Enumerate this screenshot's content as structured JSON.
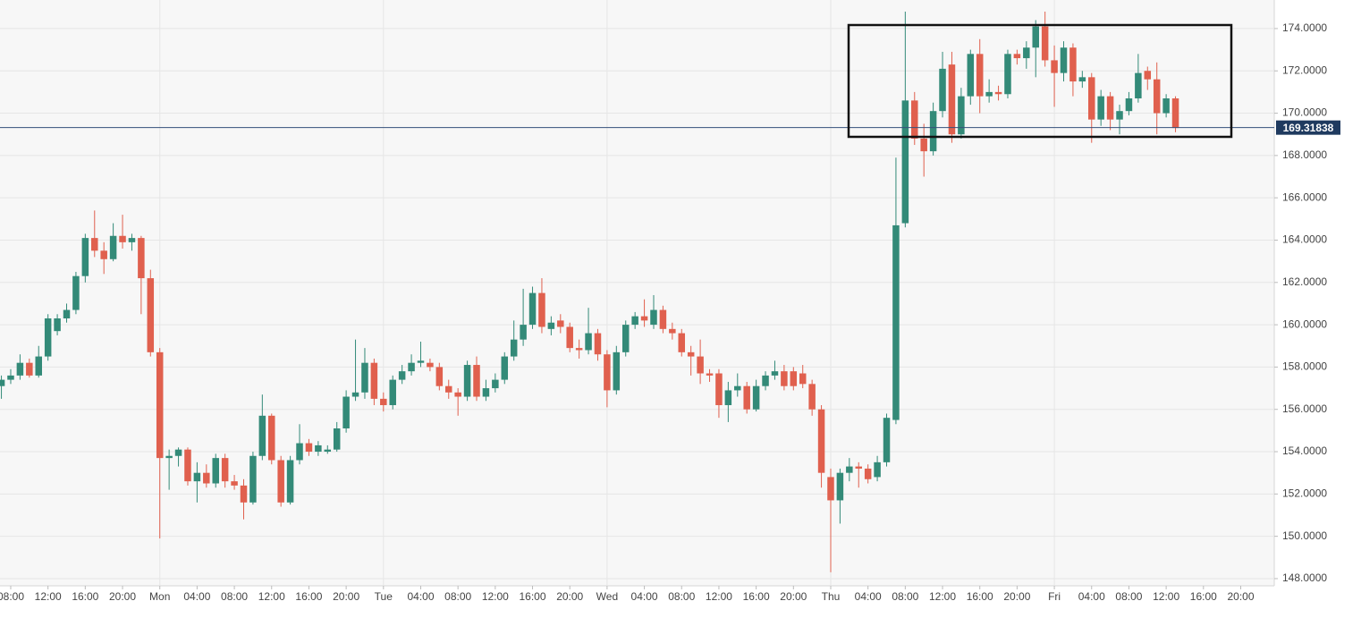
{
  "chart_data": {
    "type": "candlestick",
    "up_color": "#338a78",
    "down_color": "#e0604e",
    "grid": true,
    "xlim": [
      -1.15,
      135.6
    ],
    "ylim": [
      147.66,
      175.35
    ],
    "yticks": [
      {
        "value": 148,
        "label": "148.0000"
      },
      {
        "value": 150,
        "label": "150.0000"
      },
      {
        "value": 152,
        "label": "152.0000"
      },
      {
        "value": 154,
        "label": "154.0000"
      },
      {
        "value": 156,
        "label": "156.0000"
      },
      {
        "value": 158,
        "label": "158.0000"
      },
      {
        "value": 160,
        "label": "160.0000"
      },
      {
        "value": 162,
        "label": "162.0000"
      },
      {
        "value": 164,
        "label": "164.0000"
      },
      {
        "value": 166,
        "label": "166.0000"
      },
      {
        "value": 168,
        "label": "168.0000"
      },
      {
        "value": 170,
        "label": "170.0000"
      },
      {
        "value": 172,
        "label": "172.0000"
      },
      {
        "value": 174,
        "label": "174.0000"
      }
    ],
    "xticks": [
      {
        "value": 0,
        "label": "08:00"
      },
      {
        "value": 4,
        "label": "12:00"
      },
      {
        "value": 8,
        "label": "16:00"
      },
      {
        "value": 12,
        "label": "20:00"
      },
      {
        "value": 16,
        "label": "Mon"
      },
      {
        "value": 20,
        "label": "04:00"
      },
      {
        "value": 24,
        "label": "08:00"
      },
      {
        "value": 28,
        "label": "12:00"
      },
      {
        "value": 32,
        "label": "16:00"
      },
      {
        "value": 36,
        "label": "20:00"
      },
      {
        "value": 40,
        "label": "Tue"
      },
      {
        "value": 44,
        "label": "04:00"
      },
      {
        "value": 48,
        "label": "08:00"
      },
      {
        "value": 52,
        "label": "12:00"
      },
      {
        "value": 56,
        "label": "16:00"
      },
      {
        "value": 60,
        "label": "20:00"
      },
      {
        "value": 64,
        "label": "Wed"
      },
      {
        "value": 68,
        "label": "04:00"
      },
      {
        "value": 72,
        "label": "08:00"
      },
      {
        "value": 76,
        "label": "12:00"
      },
      {
        "value": 80,
        "label": "16:00"
      },
      {
        "value": 84,
        "label": "20:00"
      },
      {
        "value": 88,
        "label": "Thu"
      },
      {
        "value": 92,
        "label": "04:00"
      },
      {
        "value": 96,
        "label": "08:00"
      },
      {
        "value": 100,
        "label": "12:00"
      },
      {
        "value": 104,
        "label": "16:00"
      },
      {
        "value": 108,
        "label": "20:00"
      },
      {
        "value": 112,
        "label": "Fri"
      },
      {
        "value": 116,
        "label": "04:00"
      },
      {
        "value": 120,
        "label": "08:00"
      },
      {
        "value": 124,
        "label": "12:00"
      },
      {
        "value": 128,
        "label": "16:00"
      },
      {
        "value": 132,
        "label": "20:00"
      }
    ],
    "last_price": 169.31838,
    "x": [
      -1,
      0,
      1,
      2,
      3,
      4,
      5,
      6,
      7,
      8,
      9,
      10,
      11,
      12,
      13,
      14,
      15,
      16,
      17,
      18,
      19,
      20,
      21,
      22,
      23,
      24,
      25,
      26,
      27,
      28,
      29,
      30,
      31,
      32,
      33,
      34,
      35,
      36,
      37,
      38,
      39,
      40,
      41,
      42,
      43,
      44,
      45,
      46,
      47,
      48,
      49,
      50,
      51,
      52,
      53,
      54,
      55,
      56,
      57,
      58,
      59,
      60,
      61,
      62,
      63,
      64,
      65,
      66,
      67,
      68,
      69,
      70,
      71,
      72,
      73,
      74,
      75,
      76,
      77,
      78,
      79,
      80,
      81,
      82,
      83,
      84,
      85,
      86,
      87,
      88,
      89,
      90,
      91,
      92,
      93,
      94,
      95,
      96,
      97,
      98,
      99,
      100,
      101,
      102,
      103,
      104,
      105,
      106,
      107,
      108,
      109,
      110,
      111,
      112,
      113,
      114,
      115,
      116,
      117,
      118,
      119,
      120,
      121,
      122,
      123,
      124,
      125
    ],
    "open": [
      157.1,
      157.4,
      157.6,
      158.2,
      157.6,
      158.5,
      159.7,
      160.3,
      160.7,
      162.3,
      164.1,
      163.5,
      163.1,
      164.2,
      163.9,
      164.1,
      162.2,
      158.7,
      153.7,
      153.8,
      154.1,
      152.6,
      153.0,
      152.5,
      153.7,
      152.6,
      152.4,
      151.6,
      153.8,
      155.7,
      153.6,
      151.6,
      153.6,
      154.4,
      154.0,
      154.0,
      154.1,
      155.1,
      156.6,
      156.8,
      158.2,
      156.5,
      156.2,
      157.4,
      157.8,
      158.2,
      158.2,
      158.0,
      157.1,
      156.8,
      156.6,
      158.1,
      156.6,
      157.0,
      157.4,
      158.5,
      159.3,
      160.0,
      161.5,
      159.8,
      160.2,
      159.9,
      158.9,
      158.8,
      159.6,
      158.6,
      156.9,
      158.7,
      160.0,
      160.4,
      160.0,
      160.7,
      159.8,
      159.6,
      158.7,
      158.5,
      157.7,
      157.7,
      156.2,
      156.9,
      157.1,
      156.0,
      157.1,
      157.6,
      157.8,
      157.8,
      157.7,
      157.2,
      156.0,
      152.8,
      151.7,
      153.0,
      153.3,
      153.2,
      152.8,
      153.5,
      155.5,
      164.8,
      170.6,
      168.8,
      168.2,
      170.1,
      172.3,
      169.0,
      170.8,
      172.8,
      170.8,
      171.0,
      170.9,
      172.8,
      172.6,
      173.1,
      174.1,
      172.5,
      171.9,
      173.1,
      171.5,
      171.7,
      169.7,
      170.8,
      169.7,
      170.1,
      170.7,
      172.0,
      171.6,
      170.0,
      170.7
    ],
    "high": [
      157.6,
      157.9,
      158.6,
      158.4,
      159.0,
      160.5,
      160.5,
      161.0,
      162.5,
      164.3,
      165.4,
      163.9,
      164.8,
      165.2,
      164.3,
      164.2,
      162.6,
      158.9,
      154.1,
      154.2,
      154.2,
      153.5,
      153.4,
      153.9,
      153.9,
      152.9,
      152.7,
      154.0,
      156.7,
      155.8,
      153.8,
      153.8,
      155.3,
      154.6,
      154.5,
      154.3,
      155.4,
      156.9,
      159.3,
      158.9,
      158.4,
      156.8,
      157.6,
      158.1,
      158.6,
      159.2,
      158.4,
      158.2,
      157.4,
      157.0,
      158.3,
      158.5,
      157.4,
      157.7,
      158.7,
      160.2,
      161.7,
      161.8,
      162.2,
      160.4,
      160.5,
      160.1,
      159.3,
      160.8,
      159.8,
      158.8,
      159.0,
      160.2,
      160.6,
      161.2,
      161.4,
      160.9,
      160.1,
      159.8,
      159.0,
      159.3,
      157.9,
      157.9,
      157.3,
      157.7,
      157.3,
      157.4,
      157.8,
      158.3,
      158.1,
      158.0,
      158.1,
      157.4,
      156.2,
      153.2,
      153.2,
      153.7,
      153.5,
      153.4,
      153.8,
      155.8,
      167.9,
      174.8,
      171.0,
      169.5,
      170.5,
      172.9,
      172.9,
      171.2,
      173.0,
      173.5,
      171.6,
      171.3,
      173.0,
      173.0,
      173.4,
      174.4,
      174.8,
      173.2,
      173.4,
      173.3,
      172.0,
      171.9,
      171.1,
      171.0,
      170.4,
      171.0,
      172.8,
      172.2,
      172.4,
      170.9,
      170.8
    ],
    "low": [
      156.5,
      157.2,
      157.4,
      157.5,
      157.5,
      158.3,
      159.5,
      160.1,
      160.5,
      162.0,
      163.2,
      162.4,
      163.0,
      163.6,
      163.5,
      160.5,
      158.5,
      149.9,
      152.2,
      153.3,
      152.4,
      151.6,
      152.3,
      152.3,
      152.3,
      152.2,
      150.8,
      151.5,
      153.6,
      153.4,
      151.4,
      151.5,
      153.4,
      153.8,
      153.8,
      153.9,
      154.0,
      154.9,
      156.4,
      156.5,
      156.2,
      155.9,
      156.0,
      157.2,
      157.6,
      158.0,
      157.8,
      156.9,
      156.5,
      155.7,
      156.4,
      156.4,
      156.4,
      156.8,
      157.2,
      158.3,
      159.0,
      159.8,
      159.6,
      159.5,
      159.6,
      158.7,
      158.4,
      158.6,
      158.3,
      156.1,
      156.7,
      158.5,
      159.8,
      159.9,
      159.8,
      159.6,
      159.3,
      158.5,
      157.6,
      157.2,
      157.3,
      155.6,
      155.4,
      156.6,
      155.8,
      155.9,
      156.9,
      157.4,
      156.9,
      156.9,
      157.0,
      155.7,
      152.3,
      148.3,
      150.6,
      152.6,
      152.3,
      152.5,
      152.6,
      153.3,
      155.3,
      164.6,
      168.5,
      167.0,
      168.0,
      169.8,
      168.6,
      168.8,
      170.4,
      170.0,
      170.5,
      170.6,
      170.7,
      172.3,
      172.1,
      171.7,
      172.2,
      170.3,
      171.5,
      170.8,
      171.2,
      168.6,
      169.4,
      169.2,
      169.0,
      169.9,
      170.5,
      171.1,
      169.0,
      169.8,
      169.1
    ],
    "close": [
      157.4,
      157.6,
      158.2,
      157.6,
      158.5,
      160.3,
      160.3,
      160.7,
      162.3,
      164.1,
      163.5,
      163.1,
      164.2,
      163.9,
      164.1,
      162.2,
      158.7,
      153.7,
      153.8,
      154.1,
      152.6,
      153.0,
      152.5,
      153.7,
      152.6,
      152.4,
      151.6,
      153.8,
      155.7,
      153.6,
      151.6,
      153.6,
      154.4,
      154.0,
      154.3,
      154.1,
      155.1,
      156.6,
      156.8,
      158.2,
      156.5,
      156.2,
      157.4,
      157.8,
      158.2,
      158.3,
      158.0,
      157.1,
      156.8,
      156.6,
      158.1,
      156.6,
      157.0,
      157.4,
      158.5,
      159.3,
      160.0,
      161.5,
      159.9,
      160.1,
      159.9,
      158.9,
      158.8,
      159.6,
      158.6,
      156.9,
      158.7,
      160.0,
      160.4,
      160.2,
      160.7,
      159.8,
      159.6,
      158.7,
      158.5,
      157.7,
      157.6,
      156.2,
      156.9,
      157.1,
      156.0,
      157.1,
      157.6,
      157.8,
      157.1,
      157.1,
      157.2,
      156.0,
      153.0,
      151.7,
      153.0,
      153.3,
      153.2,
      152.7,
      153.5,
      155.6,
      164.7,
      170.6,
      168.8,
      168.2,
      170.1,
      172.1,
      169.0,
      170.8,
      172.8,
      170.8,
      171.0,
      170.9,
      172.8,
      172.6,
      173.1,
      174.1,
      172.5,
      171.9,
      173.1,
      171.5,
      171.7,
      169.7,
      170.8,
      169.7,
      170.1,
      170.7,
      171.9,
      171.6,
      170.0,
      170.7,
      169.3
    ]
  }
}
